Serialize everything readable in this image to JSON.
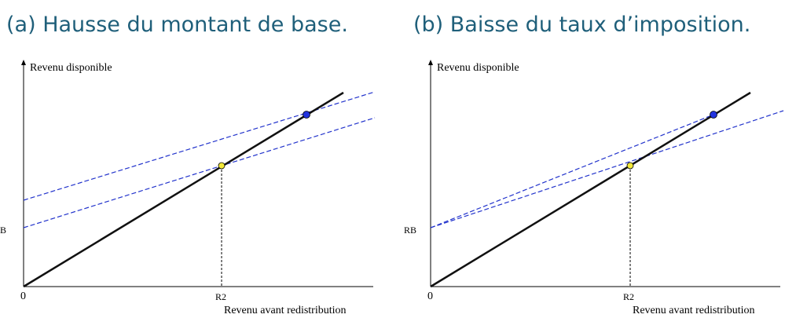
{
  "panels": [
    {
      "title": "(a) Hausse du montant de base.",
      "y_label": "Revenu disponible",
      "x_label": "Revenu avant redistribution",
      "origin": "0",
      "rb": "RB",
      "r2": "R2"
    },
    {
      "title": "(b) Baisse du taux d’imposition.",
      "y_label": "Revenu disponible",
      "x_label": "Revenu avant redistribution",
      "origin": "0",
      "rb": "RB",
      "r2": "R2"
    }
  ]
}
